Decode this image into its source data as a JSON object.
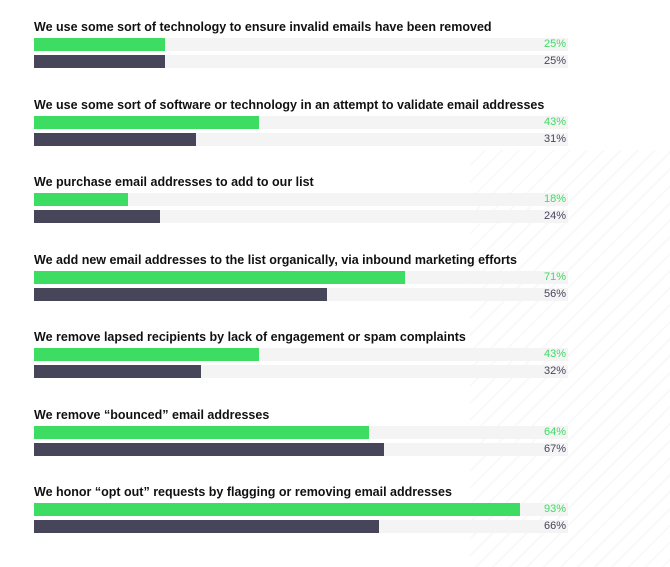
{
  "chart_data": {
    "type": "bar",
    "orientation": "horizontal",
    "categories": [
      "We use some sort of technology to ensure invalid emails have been removed",
      "We use some sort of software or technology in an attempt to validate email addresses",
      "We purchase email addresses to add to our list",
      "We add new email addresses to the list organically, via inbound marketing efforts",
      "We remove lapsed recipients by lack of engagement or spam complaints",
      "We remove “bounced” email addresses",
      "We honor “opt out” requests by flagging or removing email addresses"
    ],
    "series": [
      {
        "color": "#3ddc63",
        "values": [
          25,
          43,
          18,
          71,
          43,
          64,
          93
        ],
        "labels": [
          "25%",
          "43%",
          "18%",
          "71%",
          "43%",
          "64%",
          "93%"
        ]
      },
      {
        "color": "#46455a",
        "values": [
          25,
          31,
          24,
          56,
          32,
          67,
          66
        ],
        "labels": [
          "25%",
          "31%",
          "24%",
          "56%",
          "32%",
          "67%",
          "66%"
        ]
      }
    ],
    "xlim": [
      0,
      100
    ],
    "grid": false,
    "legend": "none"
  }
}
